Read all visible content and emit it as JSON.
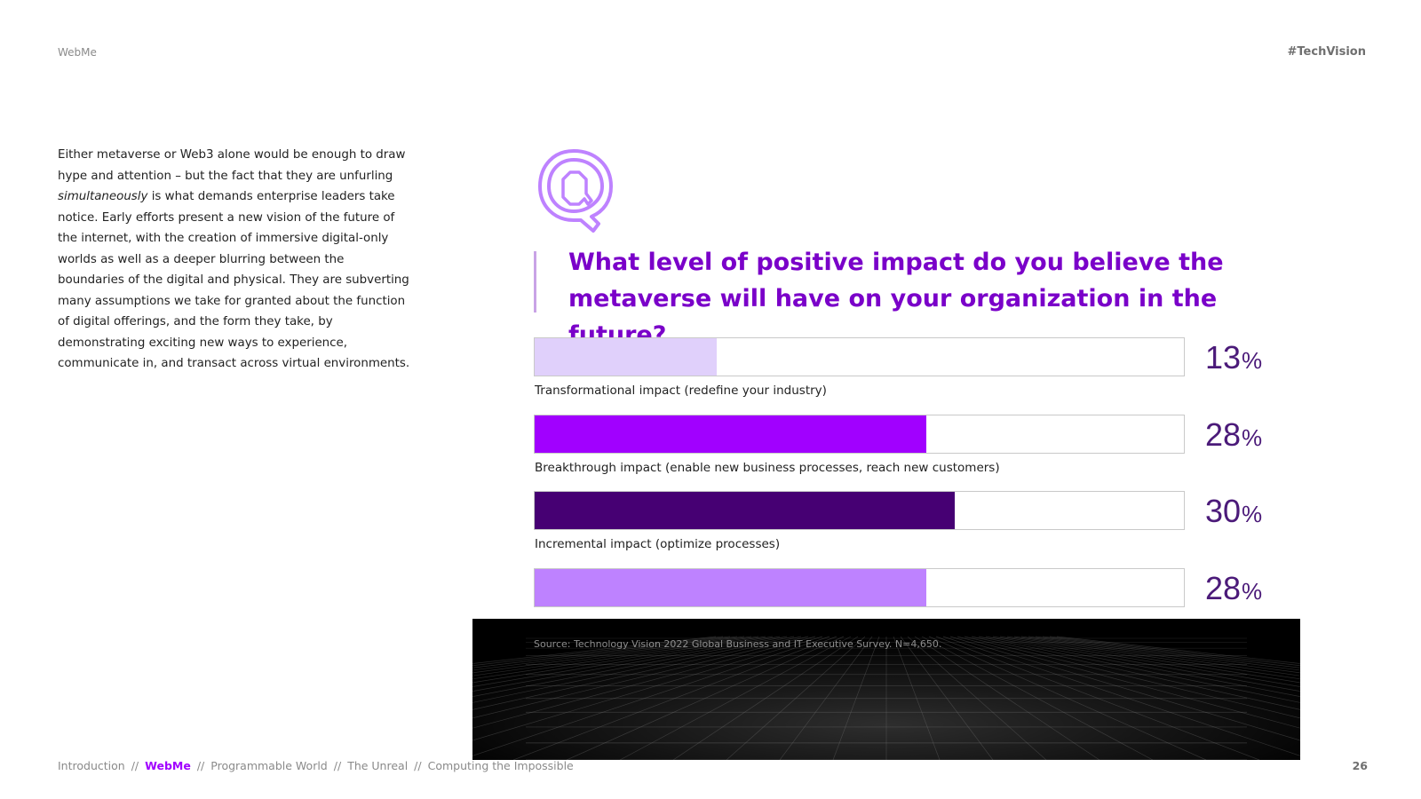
{
  "header": {
    "left": "WebMe",
    "right": "#TechVision"
  },
  "body_text": {
    "part1": "Either metaverse or Web3 alone would be enough to draw hype and attention – but the fact that they are unfurling ",
    "emphasis": "simultaneously",
    "part2": " is what demands enterprise leaders take notice. Early efforts present a new vision of the future of the internet, with the creation of immersive digital-only worlds as well as a deeper blurring between the boundaries of the digital and physical. They are subverting many assumptions we take for granted about the function of digital offerings, and the form they take, by demonstrating exciting new ways to experience, communicate in, and transact across virtual environments."
  },
  "icon": "question-q-icon",
  "chart_data": {
    "type": "bar",
    "title": "What level of positive impact do you believe the metaverse will have on your organization in the future?",
    "unit": "%",
    "xlim": [
      0,
      100
    ],
    "categories": [
      "Transformational impact (redefine your industry)",
      "Breakthrough impact (enable new business processes, reach new customers)",
      "Incremental impact (optimize processes)",
      ""
    ],
    "values": [
      13,
      28,
      30,
      28
    ],
    "colors": [
      "#e0d0fb",
      "#a100ff",
      "#460073",
      "#be82ff"
    ],
    "value_labels": [
      "13",
      "28",
      "30",
      "28"
    ],
    "percent_sign": "%",
    "source": "Source: Technology Vision 2022 Global Business and IT Executive Survey. N=4,650."
  },
  "footer": {
    "items": [
      "Introduction",
      "WebMe",
      "Programmable World",
      "The Unreal",
      "Computing the Impossible"
    ],
    "separator": "//",
    "active_index": 1,
    "page_number": "26"
  }
}
